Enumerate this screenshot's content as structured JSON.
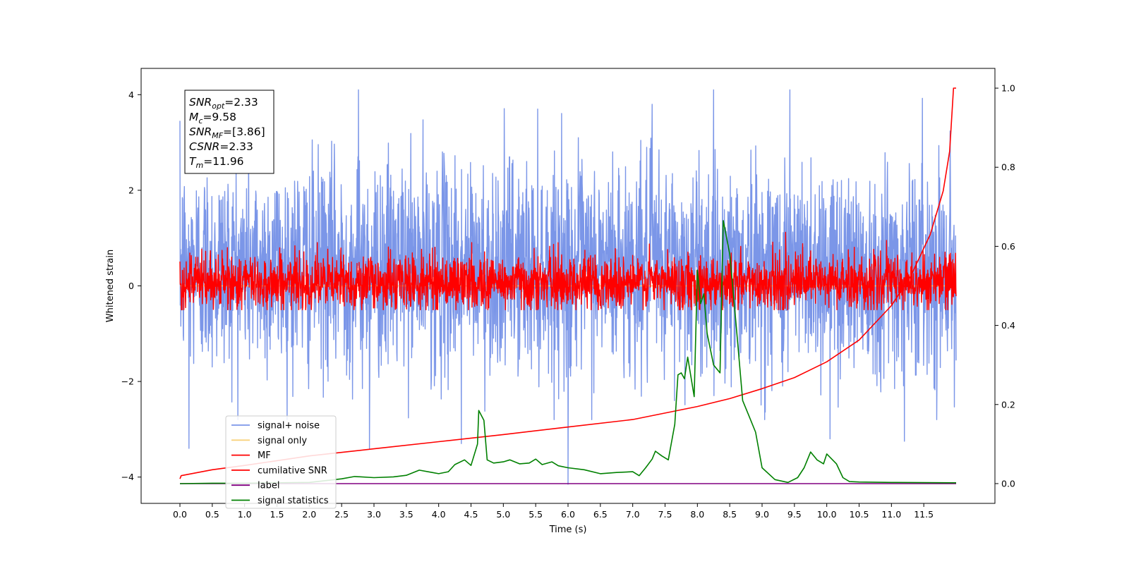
{
  "chart_data": {
    "type": "line",
    "title": "",
    "xlabel": "Time (s)",
    "ylabel": "Whitened strain",
    "y2label": "",
    "xlim": [
      -0.6,
      12.6
    ],
    "ylim": [
      -4.55,
      4.55
    ],
    "y2lim": [
      -0.05,
      1.05
    ],
    "x_ticks": [
      0.0,
      0.5,
      1.0,
      1.5,
      2.0,
      2.5,
      3.0,
      3.5,
      4.0,
      4.5,
      5.0,
      5.5,
      6.0,
      6.5,
      7.0,
      7.5,
      8.0,
      8.5,
      9.0,
      9.5,
      10.0,
      10.5,
      11.0,
      11.5
    ],
    "x_tick_labels": [
      "0.0",
      "0.5",
      "1.0",
      "1.5",
      "2.0",
      "2.5",
      "3.0",
      "3.5",
      "4.0",
      "4.5",
      "5.0",
      "5.5",
      "6.0",
      "6.5",
      "7.0",
      "7.5",
      "8.0",
      "8.5",
      "9.0",
      "9.5",
      "10.0",
      "10.5",
      "11.0",
      "11.5"
    ],
    "y_ticks": [
      -4,
      -2,
      0,
      2,
      4
    ],
    "y_tick_labels": [
      "−4",
      "−2",
      "0",
      "2",
      "4"
    ],
    "y2_ticks": [
      0.0,
      0.2,
      0.4,
      0.6,
      0.8,
      1.0
    ],
    "y2_tick_labels": [
      "0.0",
      "0.2",
      "0.4",
      "0.6",
      "0.8",
      "1.0"
    ],
    "grid": false,
    "legend_position": "lower-left",
    "annotation": {
      "lines": [
        {
          "sym": "SNR",
          "sub": "opt",
          "value": "=2.33"
        },
        {
          "sym": "M",
          "sub": "c",
          "value": "=9.58"
        },
        {
          "sym": "SNR",
          "sub": "MF",
          "value": "=[3.86]"
        },
        {
          "sym": "CSNR",
          "sub": "",
          "value": "=2.33"
        },
        {
          "sym": "T",
          "sub": "m",
          "value": "=11.96"
        }
      ]
    },
    "series": [
      {
        "name": "signal+ noise",
        "axis": "left",
        "color": "#7b96e8",
        "kind": "noise",
        "x_range": [
          0.0,
          12.0
        ],
        "mean": -0.35,
        "envelope": [
          -2.8,
          4.1
        ],
        "typical_range": [
          -1.6,
          2.4
        ],
        "spikes": [
          {
            "x": 2.76,
            "y": 4.1
          },
          {
            "x": 9.43,
            "y": 4.1
          },
          {
            "x": 7.3,
            "y": 3.8
          },
          {
            "x": 0.14,
            "y": -3.4
          },
          {
            "x": 2.93,
            "y": -3.4
          },
          {
            "x": 4.35,
            "y": -3.3
          },
          {
            "x": 6.0,
            "y": -4.15
          },
          {
            "x": 11.2,
            "y": -3.25
          },
          {
            "x": 10.05,
            "y": -3.2
          }
        ]
      },
      {
        "name": "signal only",
        "axis": "left",
        "color": "#f8d27c",
        "kind": "line",
        "x": [
          0.0,
          12.0
        ],
        "y": [
          0.0,
          0.0
        ]
      },
      {
        "name": "MF",
        "axis": "left",
        "color": "#ff0000",
        "kind": "noise",
        "x_range": [
          0.0,
          12.0
        ],
        "mean": 0.05,
        "envelope": [
          -0.5,
          1.4
        ],
        "typical_range": [
          -0.45,
          0.6
        ]
      },
      {
        "name": "cumilative SNR",
        "axis": "right",
        "color": "#ff0000",
        "kind": "line",
        "x": [
          0.0,
          0.02,
          0.5,
          1.0,
          2.0,
          3.0,
          4.0,
          5.0,
          6.0,
          7.0,
          8.0,
          8.5,
          9.0,
          9.5,
          10.0,
          10.5,
          11.0,
          11.3,
          11.6,
          11.8,
          11.9,
          11.96,
          12.0
        ],
        "y": [
          0.012,
          0.02,
          0.035,
          0.046,
          0.07,
          0.088,
          0.106,
          0.124,
          0.143,
          0.162,
          0.195,
          0.215,
          0.24,
          0.268,
          0.308,
          0.363,
          0.45,
          0.525,
          0.63,
          0.74,
          0.84,
          1.0,
          1.0
        ]
      },
      {
        "name": "label",
        "axis": "right",
        "color": "#800080",
        "kind": "line",
        "x": [
          0.0,
          12.0
        ],
        "y": [
          0.0,
          0.0
        ]
      },
      {
        "name": "signal statistics",
        "axis": "right",
        "color": "#008000",
        "kind": "line",
        "x": [
          0.0,
          0.5,
          1.0,
          1.5,
          2.0,
          2.5,
          2.7,
          3.0,
          3.3,
          3.5,
          3.7,
          3.9,
          4.0,
          4.15,
          4.25,
          4.4,
          4.5,
          4.6,
          4.62,
          4.7,
          4.75,
          4.85,
          5.0,
          5.1,
          5.25,
          5.4,
          5.5,
          5.6,
          5.75,
          5.85,
          6.0,
          6.25,
          6.5,
          6.75,
          7.0,
          7.1,
          7.2,
          7.3,
          7.35,
          7.45,
          7.55,
          7.65,
          7.7,
          7.75,
          7.8,
          7.85,
          7.95,
          8.0,
          8.05,
          8.1,
          8.15,
          8.25,
          8.35,
          8.4,
          8.5,
          8.6,
          8.7,
          8.8,
          8.9,
          9.0,
          9.2,
          9.4,
          9.55,
          9.65,
          9.75,
          9.85,
          9.95,
          10.0,
          10.15,
          10.25,
          10.35,
          10.5,
          11.0,
          12.0
        ],
        "y": [
          0.0,
          0.001,
          0.001,
          0.002,
          0.003,
          0.012,
          0.018,
          0.015,
          0.017,
          0.021,
          0.034,
          0.028,
          0.025,
          0.03,
          0.048,
          0.06,
          0.046,
          0.1,
          0.185,
          0.16,
          0.06,
          0.052,
          0.055,
          0.06,
          0.05,
          0.052,
          0.062,
          0.048,
          0.055,
          0.045,
          0.04,
          0.035,
          0.025,
          0.028,
          0.03,
          0.02,
          0.04,
          0.062,
          0.082,
          0.07,
          0.06,
          0.15,
          0.275,
          0.28,
          0.265,
          0.32,
          0.22,
          0.54,
          0.455,
          0.48,
          0.38,
          0.3,
          0.28,
          0.665,
          0.58,
          0.4,
          0.21,
          0.17,
          0.13,
          0.04,
          0.01,
          0.003,
          0.015,
          0.04,
          0.08,
          0.06,
          0.05,
          0.075,
          0.05,
          0.015,
          0.005,
          0.004,
          0.003,
          0.002
        ]
      }
    ]
  }
}
